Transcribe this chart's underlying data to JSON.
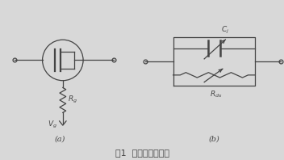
{
  "title": "图1  开关器件示意图",
  "label_a": "(a)",
  "label_b": "(b)",
  "label_Rg": "$R_g$",
  "label_Vg": "$V_g$",
  "label_Cj": "$C_{j}$",
  "label_Rds": "$R_{ds}$",
  "bg_color": "#d8d8d8",
  "line_color": "#444444"
}
